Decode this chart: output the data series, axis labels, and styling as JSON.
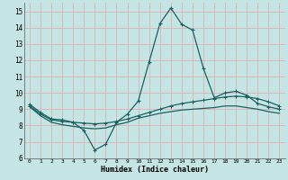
{
  "xlabel": "Humidex (Indice chaleur)",
  "xlim": [
    -0.5,
    23.5
  ],
  "ylim": [
    6,
    15.5
  ],
  "yticks": [
    6,
    7,
    8,
    9,
    10,
    11,
    12,
    13,
    14,
    15
  ],
  "xticks": [
    0,
    1,
    2,
    3,
    4,
    5,
    6,
    7,
    8,
    9,
    10,
    11,
    12,
    13,
    14,
    15,
    16,
    17,
    18,
    19,
    20,
    21,
    22,
    23
  ],
  "bg_color": "#c5e5e5",
  "grid_color": "#d9b8b8",
  "line_color": "#1a6060",
  "line1_x": [
    0,
    1,
    2,
    3,
    4,
    5,
    6,
    7,
    8,
    9,
    10,
    11,
    12,
    13,
    14,
    15,
    16,
    17,
    18,
    19,
    20,
    21,
    22,
    23
  ],
  "line1_y": [
    9.3,
    8.8,
    8.4,
    8.35,
    8.2,
    7.7,
    6.5,
    6.85,
    8.2,
    8.7,
    9.5,
    11.9,
    14.25,
    15.2,
    14.2,
    13.85,
    11.5,
    9.7,
    10.0,
    10.1,
    9.85,
    9.35,
    9.15,
    9.0
  ],
  "line2_x": [
    0,
    1,
    2,
    3,
    4,
    5,
    6,
    7,
    8,
    9,
    10,
    11,
    12,
    13,
    14,
    15,
    16,
    17,
    18,
    19,
    20,
    21,
    22,
    23
  ],
  "line2_y": [
    9.2,
    8.7,
    8.35,
    8.25,
    8.2,
    8.15,
    8.1,
    8.15,
    8.25,
    8.4,
    8.6,
    8.8,
    9.0,
    9.2,
    9.35,
    9.45,
    9.55,
    9.65,
    9.75,
    9.8,
    9.75,
    9.65,
    9.45,
    9.2
  ],
  "line3_x": [
    0,
    1,
    2,
    3,
    4,
    5,
    6,
    7,
    8,
    9,
    10,
    11,
    12,
    13,
    14,
    15,
    16,
    17,
    18,
    19,
    20,
    21,
    22,
    23
  ],
  "line3_y": [
    9.15,
    8.6,
    8.2,
    8.05,
    7.95,
    7.85,
    7.8,
    7.85,
    8.05,
    8.2,
    8.45,
    8.6,
    8.75,
    8.85,
    8.95,
    9.0,
    9.05,
    9.1,
    9.2,
    9.2,
    9.1,
    9.0,
    8.85,
    8.75
  ]
}
